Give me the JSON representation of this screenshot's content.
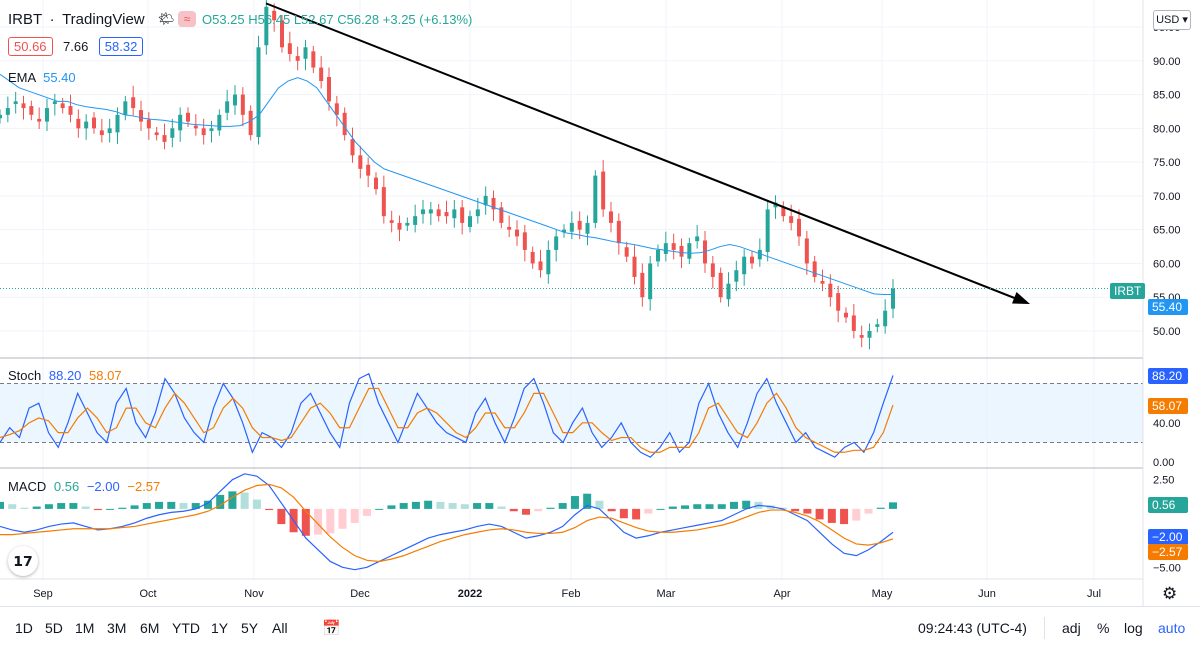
{
  "header": {
    "symbol": "IRBT",
    "source": "TradingView",
    "open_label": "O53.25",
    "high_label": "H56.45",
    "low_label": "L52.67",
    "close_label": "C56.28",
    "change_label": "+3.25 (+6.13%)",
    "bid": "50.66",
    "spread": "7.66",
    "ask": "58.32",
    "ema_label": "EMA",
    "ema_value": "55.40"
  },
  "currency": "USD",
  "stoch": {
    "label": "Stoch",
    "k": "88.20",
    "d": "58.07"
  },
  "macd": {
    "label": "MACD",
    "hist": "0.56",
    "macd": "−2.00",
    "signal": "−2.57"
  },
  "price_tags": {
    "symbol": "IRBT",
    "ema": "55.40",
    "stoch_k": "88.20",
    "stoch_d": "58.07",
    "macd_hist": "0.56",
    "macd": "−2.00",
    "signal": "−2.57"
  },
  "colors": {
    "up": "#26a69a",
    "down": "#ef5350",
    "ema": "#2196f3",
    "stoch_k": "#2962ff",
    "stoch_d": "#f57c00",
    "macd_line": "#2962ff",
    "signal_line": "#f57c00"
  },
  "timeframes": [
    "1D",
    "5D",
    "1M",
    "3M",
    "6M",
    "YTD",
    "1Y",
    "5Y",
    "All"
  ],
  "status": {
    "time": "09:24:43 (UTC-4)",
    "adj": "adj",
    "pct": "%",
    "log": "log",
    "auto": "auto"
  },
  "chart_data": {
    "type": "candlestick",
    "x_ticks": [
      "Sep",
      "Oct",
      "Nov",
      "Dec",
      "2022",
      "Feb",
      "Mar",
      "Apr",
      "May",
      "Jun",
      "Jul"
    ],
    "price_axis": {
      "ticks": [
        "95.00",
        "90.00",
        "85.00",
        "80.00",
        "75.00",
        "70.00",
        "65.00",
        "60.00",
        "55.00",
        "50.00"
      ],
      "range": [
        46,
        99
      ]
    },
    "stoch_axis": {
      "ticks": [
        "88.20",
        "58.07",
        "40.00",
        "0.00"
      ],
      "range": [
        0,
        100
      ],
      "bands": [
        20,
        80
      ]
    },
    "macd_axis": {
      "ticks": [
        "2.50",
        "0.56",
        "−2.00",
        "−2.57",
        "−5.00"
      ],
      "range": [
        -6,
        3.5
      ]
    },
    "price_path": [
      82,
      83,
      84,
      83,
      82,
      81,
      83,
      84,
      83,
      82,
      80,
      81,
      80,
      79,
      80,
      82,
      84,
      83,
      81,
      80,
      79,
      78,
      80,
      82,
      81,
      80,
      79,
      80,
      82,
      84,
      85,
      82,
      79,
      92,
      98,
      96,
      92,
      91,
      90,
      92,
      89,
      87,
      84,
      82,
      79,
      76,
      74,
      73,
      71,
      67,
      66,
      65,
      66,
      67,
      68,
      68,
      67,
      67,
      68,
      66,
      67,
      68,
      70,
      68,
      66,
      65,
      64,
      62,
      60,
      59,
      62,
      64,
      65,
      66,
      65,
      66,
      73,
      68,
      66,
      63,
      61,
      58,
      55,
      60,
      62,
      63,
      62,
      61,
      63,
      64,
      60,
      58,
      55,
      57,
      59,
      61,
      60,
      62,
      68,
      69,
      67,
      66,
      64,
      60,
      58,
      57,
      55,
      53,
      52,
      50,
      49,
      50,
      51,
      53,
      56.28
    ],
    "ema_path": [
      88,
      87,
      86,
      85.5,
      85,
      84.5,
      84,
      84,
      83.5,
      83.2,
      83,
      82.8,
      82.5,
      82,
      81.8,
      81.5,
      81.3,
      81.2,
      81,
      80.8,
      80.6,
      80.5,
      80.4,
      80.3,
      80.3,
      80.4,
      81,
      82,
      84,
      86,
      87,
      87.5,
      87,
      86,
      84,
      82,
      80,
      78,
      76.5,
      75,
      74,
      73.5,
      73,
      72.5,
      72,
      71.5,
      71,
      70.5,
      70,
      69.5,
      69,
      68.5,
      68,
      67.5,
      67,
      66.5,
      66,
      65.5,
      65,
      64.5,
      64.3,
      64,
      63.8,
      63.5,
      63.2,
      63,
      62.8,
      62.5,
      62.2,
      62,
      61.8,
      61.6,
      61.5,
      61.6,
      62,
      62.5,
      62.8,
      62.5,
      62,
      61.5,
      61,
      60.5,
      60,
      59.5,
      59,
      58.5,
      58,
      57.5,
      57,
      56.5,
      56,
      55.5,
      55.4,
      55.4
    ],
    "stoch_k_path": [
      20,
      35,
      25,
      55,
      60,
      30,
      15,
      40,
      70,
      50,
      30,
      20,
      60,
      75,
      40,
      25,
      50,
      85,
      70,
      45,
      30,
      20,
      55,
      80,
      65,
      40,
      10,
      30,
      25,
      15,
      30,
      60,
      70,
      50,
      30,
      15,
      60,
      85,
      90,
      60,
      40,
      20,
      45,
      70,
      55,
      40,
      30,
      25,
      20,
      50,
      65,
      40,
      20,
      45,
      75,
      85,
      60,
      30,
      20,
      40,
      55,
      30,
      15,
      25,
      40,
      20,
      10,
      5,
      15,
      30,
      10,
      20,
      60,
      80,
      50,
      30,
      15,
      40,
      70,
      85,
      60,
      40,
      20,
      30,
      15,
      10,
      5,
      15,
      20,
      10,
      30,
      60,
      88.2
    ],
    "stoch_d_path": [
      25,
      28,
      32,
      40,
      45,
      42,
      30,
      30,
      45,
      55,
      45,
      30,
      35,
      55,
      55,
      40,
      35,
      55,
      70,
      60,
      45,
      30,
      35,
      55,
      65,
      55,
      35,
      25,
      25,
      22,
      25,
      40,
      55,
      60,
      50,
      35,
      35,
      55,
      75,
      75,
      55,
      35,
      35,
      50,
      55,
      50,
      40,
      30,
      25,
      35,
      50,
      50,
      35,
      35,
      50,
      70,
      70,
      50,
      30,
      30,
      40,
      40,
      30,
      22,
      25,
      25,
      15,
      10,
      10,
      15,
      15,
      15,
      30,
      55,
      60,
      45,
      30,
      25,
      40,
      60,
      70,
      55,
      35,
      25,
      20,
      15,
      10,
      10,
      12,
      12,
      15,
      30,
      58.07
    ],
    "macd_line_path": [
      -1.5,
      -1.8,
      -2,
      -1.8,
      -1.5,
      -1.3,
      -1.2,
      -1.5,
      -1.8,
      -1.7,
      -1.5,
      -1.2,
      -0.8,
      -0.5,
      -0.3,
      -0.2,
      0,
      0.5,
      1.5,
      2.5,
      3,
      2.8,
      2,
      0.5,
      -1,
      -2.5,
      -3.5,
      -4.5,
      -5,
      -5.2,
      -5,
      -4.5,
      -4,
      -3.5,
      -3,
      -2.5,
      -2.2,
      -2,
      -1.8,
      -1.5,
      -1.3,
      -1.5,
      -2,
      -2.5,
      -2.3,
      -2,
      -1.5,
      -0.5,
      0.3,
      0,
      -1,
      -2,
      -2.5,
      -2.3,
      -2,
      -1.8,
      -1.6,
      -1.4,
      -1.2,
      -1,
      -0.5,
      0,
      0.3,
      0.2,
      0,
      -0.5,
      -1,
      -2,
      -3,
      -3.8,
      -4,
      -3.5,
      -2.8,
      -2
    ],
    "signal_line_path": [
      -2.2,
      -2.2,
      -2.1,
      -2,
      -1.9,
      -1.8,
      -1.7,
      -1.7,
      -1.7,
      -1.7,
      -1.6,
      -1.5,
      -1.3,
      -1.1,
      -0.9,
      -0.7,
      -0.5,
      -0.2,
      0.3,
      1,
      1.6,
      2,
      2.1,
      1.8,
      1,
      -0.2,
      -1.3,
      -2.4,
      -3.3,
      -4,
      -4.4,
      -4.5,
      -4.3,
      -4,
      -3.6,
      -3.2,
      -2.8,
      -2.5,
      -2.2,
      -2,
      -1.8,
      -1.7,
      -1.8,
      -2,
      -2.1,
      -2.1,
      -2,
      -1.6,
      -1,
      -0.7,
      -0.8,
      -1.2,
      -1.6,
      -1.9,
      -2,
      -2,
      -1.9,
      -1.8,
      -1.6,
      -1.4,
      -1.1,
      -0.7,
      -0.3,
      -0.1,
      -0.1,
      -0.3,
      -0.6,
      -1.1,
      -1.8,
      -2.5,
      -3,
      -3.1,
      -2.9,
      -2.57
    ],
    "macd_hist_path": [
      0.6,
      0.4,
      0.1,
      0.2,
      0.4,
      0.5,
      0.5,
      0.2,
      -0.1,
      0,
      0.1,
      0.3,
      0.5,
      0.6,
      0.6,
      0.5,
      0.5,
      0.7,
      1.2,
      1.5,
      1.4,
      0.8,
      -0.1,
      -1.3,
      -2,
      -2.3,
      -2.2,
      -2.1,
      -1.7,
      -1.2,
      -0.6,
      0,
      0.3,
      0.5,
      0.6,
      0.7,
      0.6,
      0.5,
      0.4,
      0.5,
      0.5,
      0.2,
      -0.2,
      -0.5,
      -0.2,
      0.1,
      0.5,
      1.1,
      1.3,
      0.7,
      -0.2,
      -0.8,
      -0.9,
      -0.4,
      0,
      0.2,
      0.3,
      0.4,
      0.4,
      0.4,
      0.6,
      0.7,
      0.6,
      0.3,
      0.1,
      -0.2,
      -0.4,
      -0.9,
      -1.2,
      -1.3,
      -1,
      -0.4,
      0.1,
      0.56
    ],
    "trendline": {
      "from_month": "Nov",
      "from_price": 98.5,
      "to_month": "Jun-mid",
      "to_price": 54
    }
  }
}
